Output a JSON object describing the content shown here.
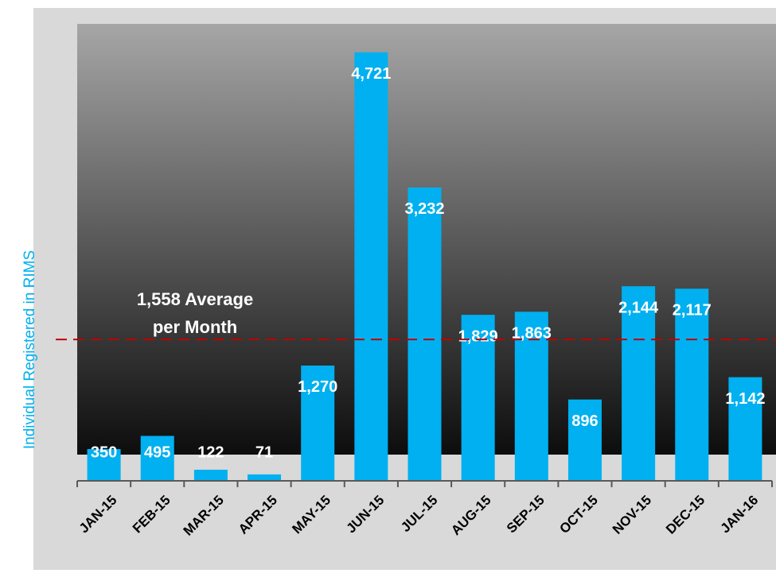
{
  "chart_data": {
    "type": "bar",
    "y_axis_label": "Individual Registered in RIMS",
    "categories": [
      "JAN-15",
      "FEB-15",
      "MAR-15",
      "APR-15",
      "MAY-15",
      "JUN-15",
      "JUL-15",
      "AUG-15",
      "SEP-15",
      "OCT-15",
      "NOV-15",
      "DEC-15",
      "JAN-16"
    ],
    "values": [
      350,
      495,
      122,
      71,
      1270,
      4721,
      3232,
      1829,
      1863,
      896,
      2144,
      2117,
      1142
    ],
    "value_labels": [
      "350",
      "495",
      "122",
      "71",
      "1,270",
      "4,721",
      "3,232",
      "1,829",
      "1,863",
      "896",
      "2,144",
      "2,117",
      "1,142"
    ],
    "color": "#00b0f0",
    "ylim": [
      0,
      5000
    ],
    "average_line": {
      "value": 1558,
      "color": "#c00000"
    },
    "annotation": [
      "1,558 Average",
      "per Month"
    ]
  }
}
